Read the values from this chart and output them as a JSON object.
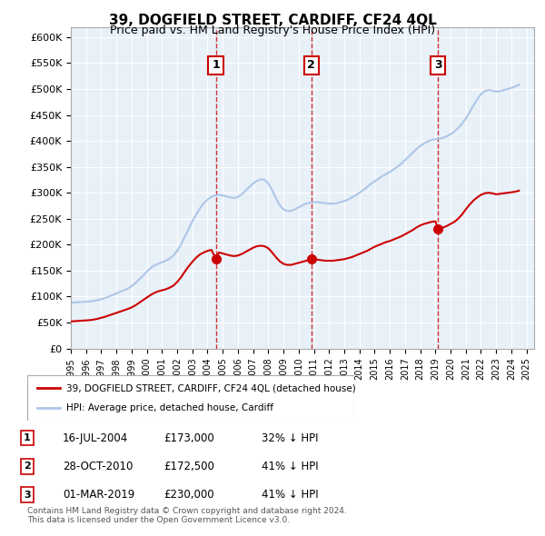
{
  "title": "39, DOGFIELD STREET, CARDIFF, CF24 4QL",
  "subtitle": "Price paid vs. HM Land Registry's House Price Index (HPI)",
  "ylabel_ticks": [
    "£0",
    "£50K",
    "£100K",
    "£150K",
    "£200K",
    "£250K",
    "£300K",
    "£350K",
    "£400K",
    "£450K",
    "£500K",
    "£550K",
    "£600K"
  ],
  "ytick_values": [
    0,
    50000,
    100000,
    150000,
    200000,
    250000,
    300000,
    350000,
    400000,
    450000,
    500000,
    550000,
    600000
  ],
  "ylim": [
    0,
    620000
  ],
  "xlim_start": 1995.0,
  "xlim_end": 2025.5,
  "hpi_color": "#aec6e8",
  "price_color": "#cc0000",
  "background_color": "#dce9f5",
  "plot_bg_color": "#e8f0f8",
  "legend_label_price": "39, DOGFIELD STREET, CARDIFF, CF24 4QL (detached house)",
  "legend_label_hpi": "HPI: Average price, detached house, Cardiff",
  "sale1_date": "16-JUL-2004",
  "sale1_price": "£173,000",
  "sale1_note": "32% ↓ HPI",
  "sale1_x": 2004.54,
  "sale1_y": 173000,
  "sale2_date": "28-OCT-2010",
  "sale2_price": "£172,500",
  "sale2_note": "41% ↓ HPI",
  "sale2_x": 2010.83,
  "sale2_y": 172500,
  "sale3_date": "01-MAR-2019",
  "sale3_price": "£230,000",
  "sale3_note": "41% ↓ HPI",
  "sale3_x": 2019.17,
  "sale3_y": 230000,
  "footer": "Contains HM Land Registry data © Crown copyright and database right 2024.\nThis data is licensed under the Open Government Licence v3.0.",
  "hpi_data_x": [
    1995,
    1995.25,
    1995.5,
    1995.75,
    1996,
    1996.25,
    1996.5,
    1996.75,
    1997,
    1997.25,
    1997.5,
    1997.75,
    1998,
    1998.25,
    1998.5,
    1998.75,
    1999,
    1999.25,
    1999.5,
    1999.75,
    2000,
    2000.25,
    2000.5,
    2000.75,
    2001,
    2001.25,
    2001.5,
    2001.75,
    2002,
    2002.25,
    2002.5,
    2002.75,
    2003,
    2003.25,
    2003.5,
    2003.75,
    2004,
    2004.25,
    2004.5,
    2004.75,
    2005,
    2005.25,
    2005.5,
    2005.75,
    2006,
    2006.25,
    2006.5,
    2006.75,
    2007,
    2007.25,
    2007.5,
    2007.75,
    2008,
    2008.25,
    2008.5,
    2008.75,
    2009,
    2009.25,
    2009.5,
    2009.75,
    2010,
    2010.25,
    2010.5,
    2010.75,
    2011,
    2011.25,
    2011.5,
    2011.75,
    2012,
    2012.25,
    2012.5,
    2012.75,
    2013,
    2013.25,
    2013.5,
    2013.75,
    2014,
    2014.25,
    2014.5,
    2014.75,
    2015,
    2015.25,
    2015.5,
    2015.75,
    2016,
    2016.25,
    2016.5,
    2016.75,
    2017,
    2017.25,
    2017.5,
    2017.75,
    2018,
    2018.25,
    2018.5,
    2018.75,
    2019,
    2019.25,
    2019.5,
    2019.75,
    2020,
    2020.25,
    2020.5,
    2020.75,
    2021,
    2021.25,
    2021.5,
    2021.75,
    2022,
    2022.25,
    2022.5,
    2022.75,
    2023,
    2023.25,
    2023.5,
    2023.75,
    2024,
    2024.25,
    2024.5
  ],
  "hpi_data_y": [
    88000,
    88500,
    89000,
    89500,
    90000,
    90500,
    91500,
    93000,
    95000,
    97000,
    100000,
    103000,
    106000,
    109000,
    112000,
    115000,
    120000,
    126000,
    133000,
    140000,
    148000,
    155000,
    160000,
    163000,
    166000,
    169000,
    173000,
    179000,
    188000,
    200000,
    215000,
    230000,
    245000,
    258000,
    270000,
    280000,
    287000,
    292000,
    295000,
    296000,
    295000,
    293000,
    291000,
    290000,
    292000,
    297000,
    304000,
    311000,
    318000,
    323000,
    326000,
    325000,
    318000,
    305000,
    290000,
    276000,
    268000,
    265000,
    265000,
    268000,
    272000,
    276000,
    279000,
    281000,
    282000,
    282000,
    281000,
    280000,
    279000,
    279000,
    280000,
    282000,
    284000,
    287000,
    291000,
    295000,
    300000,
    305000,
    311000,
    317000,
    322000,
    327000,
    332000,
    336000,
    340000,
    345000,
    350000,
    356000,
    363000,
    370000,
    377000,
    384000,
    390000,
    395000,
    399000,
    402000,
    403000,
    404000,
    406000,
    409000,
    413000,
    418000,
    425000,
    433000,
    443000,
    455000,
    468000,
    480000,
    490000,
    496000,
    498000,
    497000,
    495000,
    496000,
    498000,
    500000,
    502000,
    505000,
    508000
  ],
  "price_data_x": [
    1995.0,
    1995.25,
    1995.5,
    1995.75,
    1996.0,
    1996.25,
    1996.5,
    1996.75,
    1997.0,
    1997.25,
    1997.5,
    1997.75,
    1998.0,
    1998.25,
    1998.5,
    1998.75,
    1999.0,
    1999.25,
    1999.5,
    1999.75,
    2000.0,
    2000.25,
    2000.5,
    2000.75,
    2001.0,
    2001.25,
    2001.5,
    2001.75,
    2002.0,
    2002.25,
    2002.5,
    2002.75,
    2003.0,
    2003.25,
    2003.5,
    2003.75,
    2004.0,
    2004.25,
    2004.54,
    2004.75,
    2005.0,
    2005.25,
    2005.5,
    2005.75,
    2006.0,
    2006.25,
    2006.5,
    2006.75,
    2007.0,
    2007.25,
    2007.5,
    2007.75,
    2008.0,
    2008.25,
    2008.5,
    2008.75,
    2009.0,
    2009.25,
    2009.5,
    2009.75,
    2010.0,
    2010.25,
    2010.5,
    2010.83,
    2011.0,
    2011.25,
    2011.5,
    2011.75,
    2012.0,
    2012.25,
    2012.5,
    2012.75,
    2013.0,
    2013.25,
    2013.5,
    2013.75,
    2014.0,
    2014.25,
    2014.5,
    2014.75,
    2015.0,
    2015.25,
    2015.5,
    2015.75,
    2016.0,
    2016.25,
    2016.5,
    2016.75,
    2017.0,
    2017.25,
    2017.5,
    2017.75,
    2018.0,
    2018.25,
    2018.5,
    2018.75,
    2019.0,
    2019.17,
    2019.5,
    2019.75,
    2020.0,
    2020.25,
    2020.5,
    2020.75,
    2021.0,
    2021.25,
    2021.5,
    2021.75,
    2022.0,
    2022.25,
    2022.5,
    2022.75,
    2023.0,
    2023.25,
    2023.5,
    2023.75,
    2024.0,
    2024.25,
    2024.5
  ],
  "price_data_y": [
    52000,
    52500,
    53000,
    53500,
    54000,
    54500,
    55500,
    57000,
    59000,
    61000,
    63500,
    66000,
    68500,
    71000,
    73500,
    76000,
    79000,
    83000,
    88000,
    93000,
    98000,
    103000,
    107000,
    110000,
    112000,
    114000,
    117000,
    121000,
    128000,
    137000,
    148000,
    158000,
    167000,
    175000,
    181000,
    185000,
    188000,
    190000,
    173000,
    185000,
    183000,
    181000,
    179000,
    178000,
    179000,
    182000,
    186000,
    190000,
    194000,
    197000,
    198000,
    197000,
    193000,
    185000,
    176000,
    168000,
    163000,
    161000,
    161000,
    163000,
    165000,
    167000,
    169000,
    172500,
    172000,
    171000,
    170000,
    169000,
    169000,
    169000,
    170000,
    171000,
    172000,
    174000,
    176000,
    179000,
    182000,
    185000,
    188000,
    192000,
    196000,
    199000,
    202000,
    205000,
    207000,
    210000,
    213000,
    216000,
    220000,
    224000,
    228000,
    233000,
    237000,
    240000,
    242000,
    244000,
    245000,
    230000,
    233000,
    236000,
    240000,
    244000,
    250000,
    258000,
    268000,
    277000,
    285000,
    291000,
    296000,
    299000,
    300000,
    299000,
    297000,
    298000,
    299000,
    300000,
    301000,
    302000,
    304000
  ]
}
